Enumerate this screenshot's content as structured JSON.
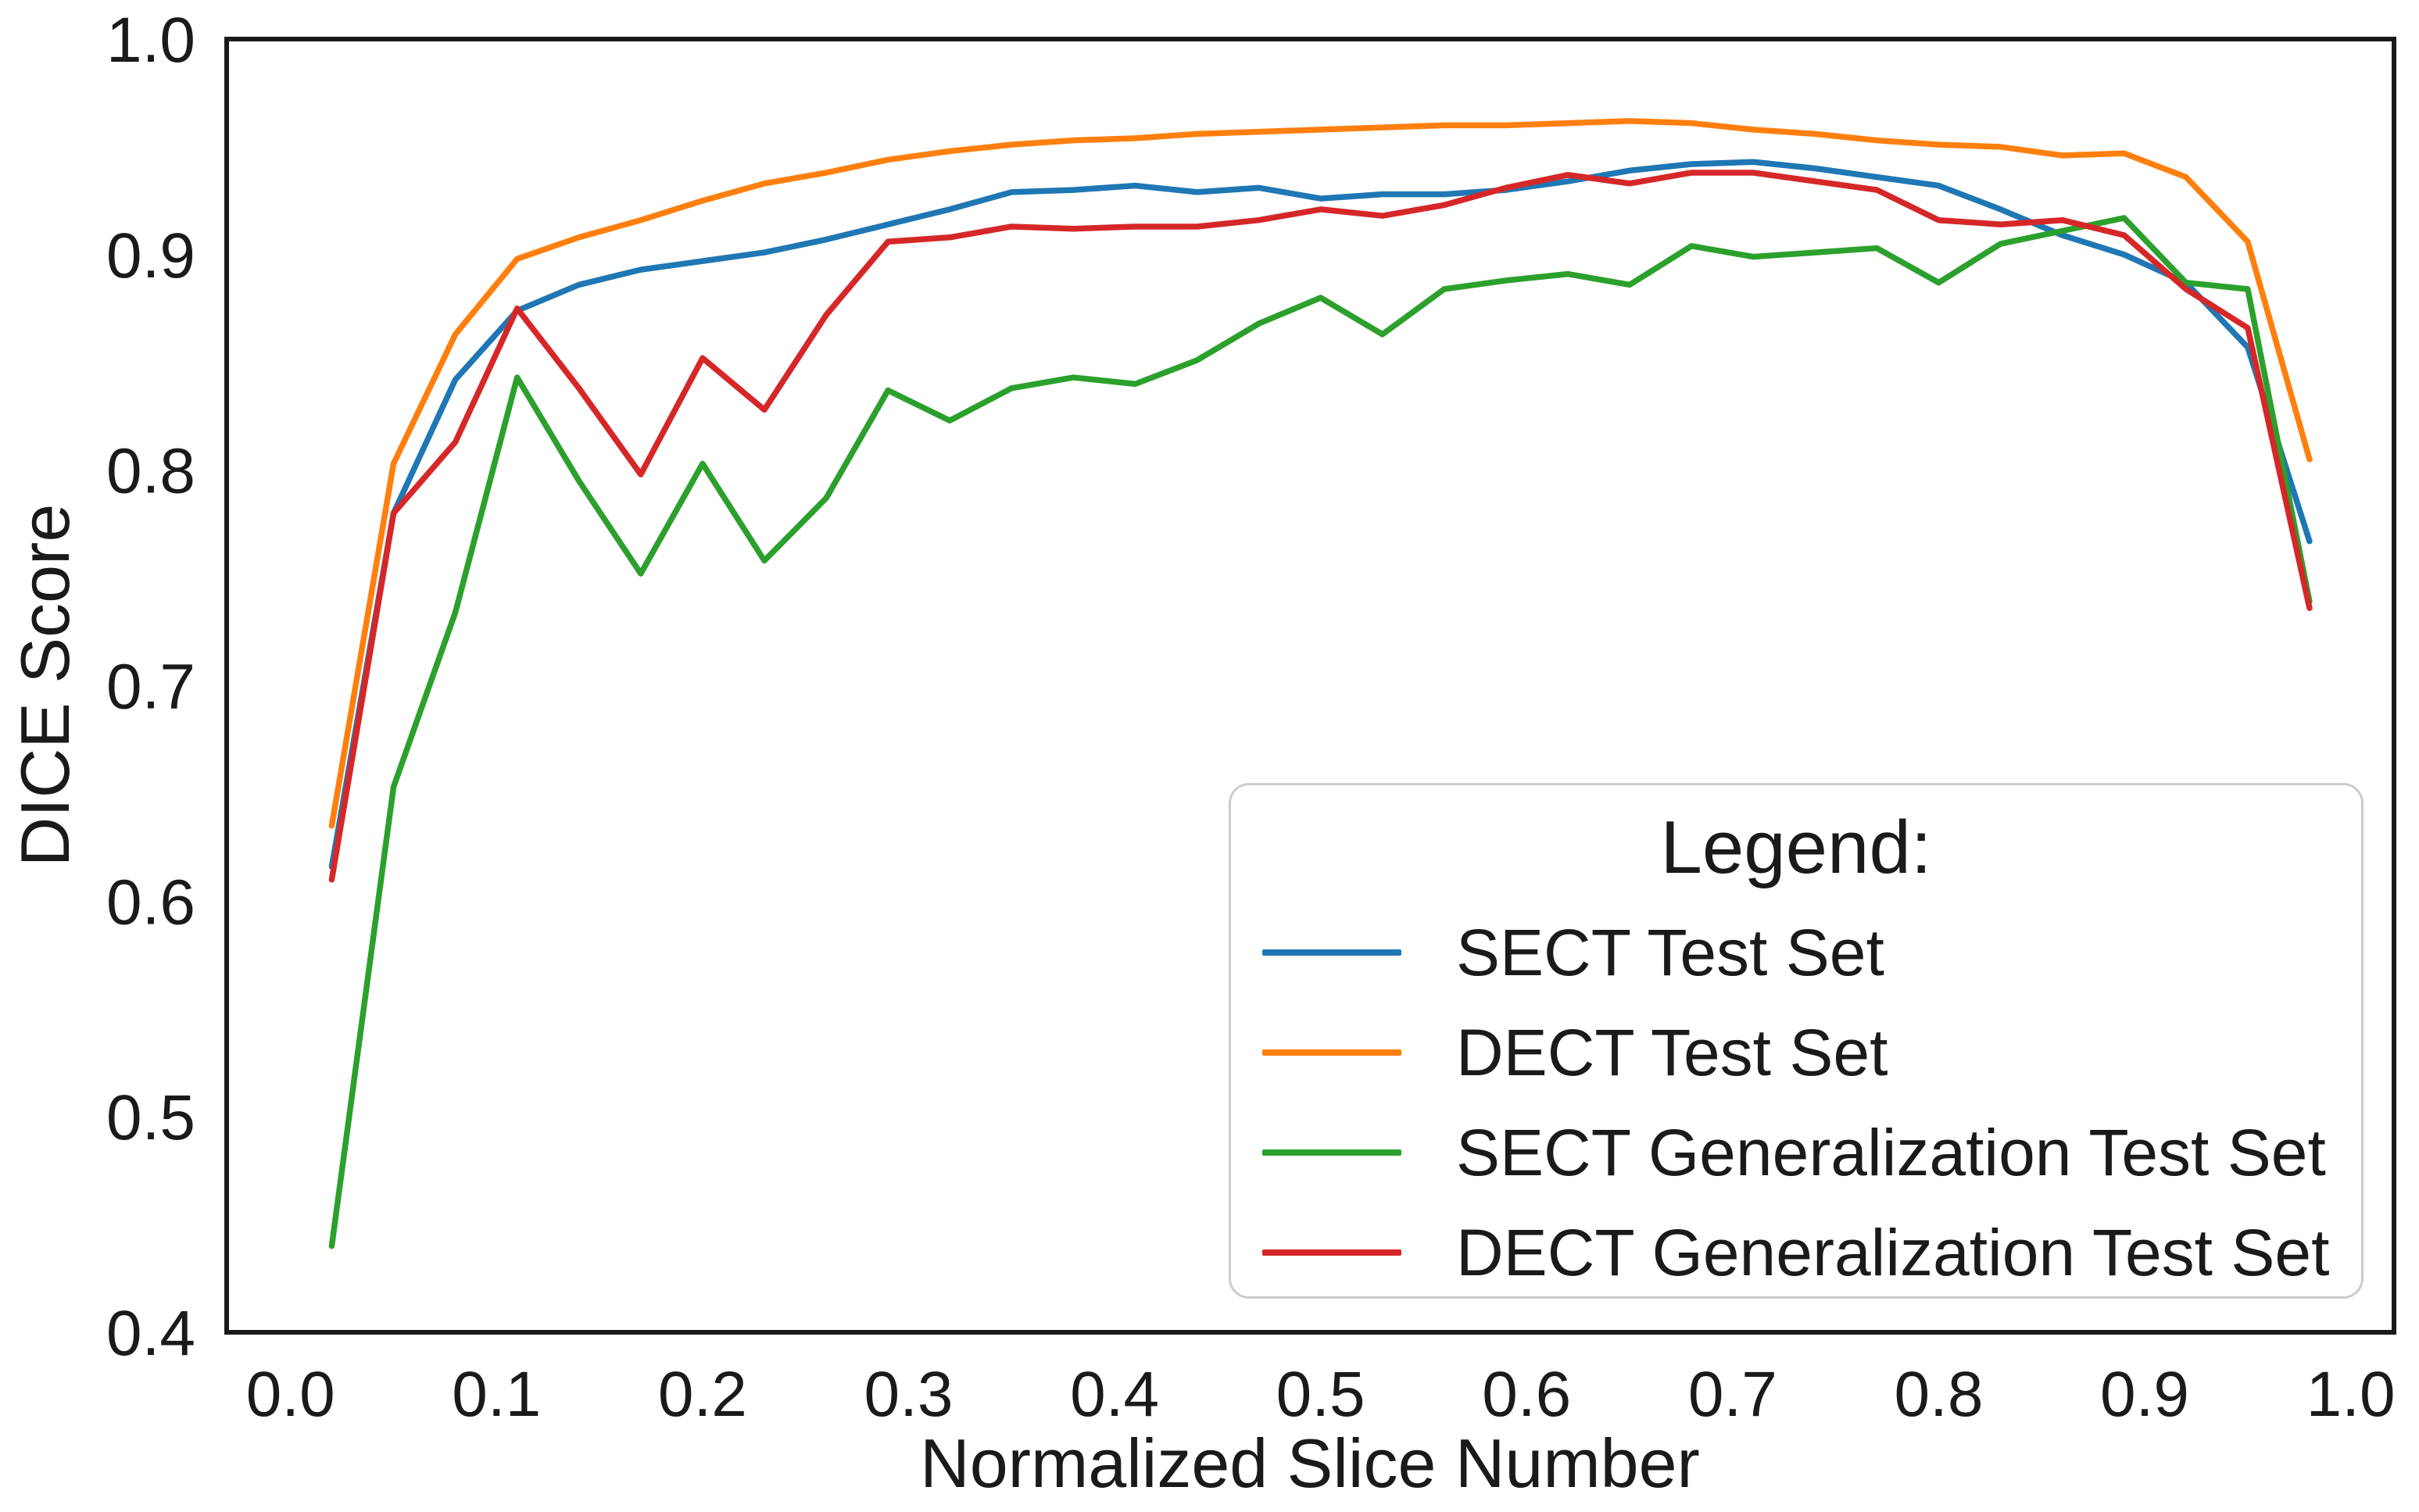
{
  "figure": {
    "background": "#ffffff",
    "text_color": "#1a1a1a",
    "spine_color": "#1a1a1a"
  },
  "legend": {
    "title": "Legend:",
    "items": [
      {
        "label": "SECT Test Set",
        "color": "#1f77b4"
      },
      {
        "label": "DECT Test Set",
        "color": "#ff7f0e"
      },
      {
        "label": "SECT Generalization Test Set",
        "color": "#2ca02c"
      },
      {
        "label": "DECT Generalization Test Set",
        "color": "#d62728"
      }
    ]
  },
  "chart_data": {
    "type": "line",
    "title": "",
    "xlabel": "Normalized Slice Number",
    "ylabel": "DICE Score",
    "xlim": [
      -0.031,
      1.021
    ],
    "ylim": [
      0.4,
      1.0
    ],
    "grid": false,
    "legend_position": "lower right",
    "xticks": {
      "values": [
        0.0,
        0.1,
        0.2,
        0.3,
        0.4,
        0.5,
        0.6,
        0.7,
        0.8,
        0.9,
        1.0
      ],
      "labels": [
        "0.0",
        "0.1",
        "0.2",
        "0.3",
        "0.4",
        "0.5",
        "0.6",
        "0.7",
        "0.8",
        "0.9",
        "1.0"
      ]
    },
    "yticks": {
      "values": [
        0.4,
        0.5,
        0.6,
        0.7,
        0.8,
        0.9,
        1.0
      ],
      "labels": [
        "0.4",
        "0.5",
        "0.6",
        "0.7",
        "0.8",
        "0.9",
        "1.0"
      ]
    },
    "x": [
      0.02,
      0.05,
      0.08,
      0.11,
      0.14,
      0.17,
      0.2,
      0.23,
      0.26,
      0.29,
      0.32,
      0.35,
      0.38,
      0.41,
      0.44,
      0.47,
      0.5,
      0.53,
      0.56,
      0.59,
      0.62,
      0.65,
      0.68,
      0.71,
      0.74,
      0.77,
      0.8,
      0.83,
      0.86,
      0.89,
      0.92,
      0.95,
      0.98
    ],
    "series": [
      {
        "name": "SECT Test Set",
        "color": "#1f77b4",
        "values": [
          0.616,
          0.78,
          0.842,
          0.874,
          0.886,
          0.893,
          0.897,
          0.901,
          0.907,
          0.914,
          0.921,
          0.929,
          0.93,
          0.932,
          0.929,
          0.931,
          0.926,
          0.928,
          0.928,
          0.93,
          0.934,
          0.939,
          0.942,
          0.943,
          0.94,
          0.936,
          0.932,
          0.921,
          0.909,
          0.9,
          0.887,
          0.857,
          0.767
        ]
      },
      {
        "name": "DECT Test Set",
        "color": "#ff7f0e",
        "values": [
          0.635,
          0.803,
          0.863,
          0.898,
          0.908,
          0.916,
          0.925,
          0.933,
          0.938,
          0.944,
          0.948,
          0.951,
          0.953,
          0.954,
          0.956,
          0.957,
          0.958,
          0.959,
          0.96,
          0.96,
          0.961,
          0.962,
          0.961,
          0.958,
          0.956,
          0.953,
          0.951,
          0.95,
          0.946,
          0.947,
          0.936,
          0.906,
          0.805
        ]
      },
      {
        "name": "SECT Generalization Test Set",
        "color": "#2ca02c",
        "values": [
          0.44,
          0.653,
          0.734,
          0.843,
          0.795,
          0.752,
          0.803,
          0.758,
          0.787,
          0.837,
          0.823,
          0.838,
          0.843,
          0.84,
          0.851,
          0.868,
          0.88,
          0.863,
          0.884,
          0.888,
          0.891,
          0.886,
          0.904,
          0.899,
          0.901,
          0.903,
          0.887,
          0.905,
          0.911,
          0.917,
          0.887,
          0.884,
          0.739
        ]
      },
      {
        "name": "DECT Generalization Test Set",
        "color": "#d62728",
        "values": [
          0.61,
          0.78,
          0.813,
          0.875,
          0.838,
          0.798,
          0.852,
          0.828,
          0.872,
          0.906,
          0.908,
          0.913,
          0.912,
          0.913,
          0.913,
          0.916,
          0.921,
          0.918,
          0.923,
          0.931,
          0.937,
          0.933,
          0.938,
          0.938,
          0.934,
          0.93,
          0.916,
          0.914,
          0.916,
          0.909,
          0.884,
          0.866,
          0.736
        ]
      }
    ]
  }
}
